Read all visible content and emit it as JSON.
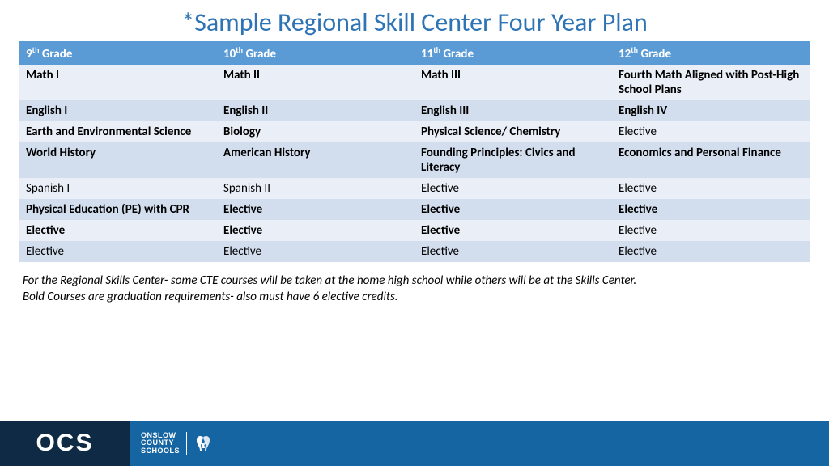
{
  "title": "*Sample Regional Skill Center Four Year Plan",
  "title_color": "#2e74b5",
  "table": {
    "header_bg": "#5b9bd5",
    "row_bg_light": "#eaeff7",
    "row_bg_dark": "#d2deee",
    "columns": [
      {
        "pre": "9",
        "sup": "th",
        "post": " Grade"
      },
      {
        "pre": "10",
        "sup": "th",
        "post": " Grade"
      },
      {
        "pre": "11",
        "sup": "th",
        "post": " Grade"
      },
      {
        "pre": "12",
        "sup": "th",
        "post": " Grade"
      }
    ],
    "rows": [
      {
        "bold": true,
        "cells": [
          "Math I",
          "Math II",
          "Math III",
          "Fourth Math Aligned with Post-High School Plans"
        ]
      },
      {
        "bold": true,
        "cells": [
          "English I",
          "English II",
          "English III",
          "English IV"
        ]
      },
      {
        "bold": [
          true,
          true,
          true,
          false
        ],
        "cells": [
          "Earth and Environmental Science",
          "Biology",
          "Physical Science/ Chemistry",
          "Elective"
        ]
      },
      {
        "bold": true,
        "cells": [
          "World History",
          "American History",
          "Founding Principles: Civics and Literacy",
          "Economics and Personal Finance"
        ]
      },
      {
        "bold": [
          false,
          false,
          false,
          false
        ],
        "cells": [
          "Spanish I",
          "Spanish II",
          "Elective",
          "Elective"
        ]
      },
      {
        "bold": true,
        "cells": [
          "Physical Education (PE) with CPR",
          "Elective",
          "Elective",
          "Elective"
        ]
      },
      {
        "bold": [
          true,
          true,
          true,
          false
        ],
        "cells": [
          "Elective",
          "Elective",
          "Elective",
          "Elective"
        ]
      },
      {
        "bold": false,
        "cells": [
          "Elective",
          "Elective",
          "Elective",
          "Elective"
        ]
      }
    ]
  },
  "footnote_line1": "For the Regional Skills Center- some CTE courses will be taken at the home high school while others will be at the Skills Center.",
  "footnote_line2": "Bold Courses are graduation requirements- also must have 6 elective credits.",
  "footer": {
    "left_bg": "#0f2a44",
    "right_bg": "#1565a2",
    "ocs": "OCS",
    "county_l1": "ONSLOW",
    "county_l2": "COUNTY",
    "county_l3": "SCHOOLS"
  }
}
